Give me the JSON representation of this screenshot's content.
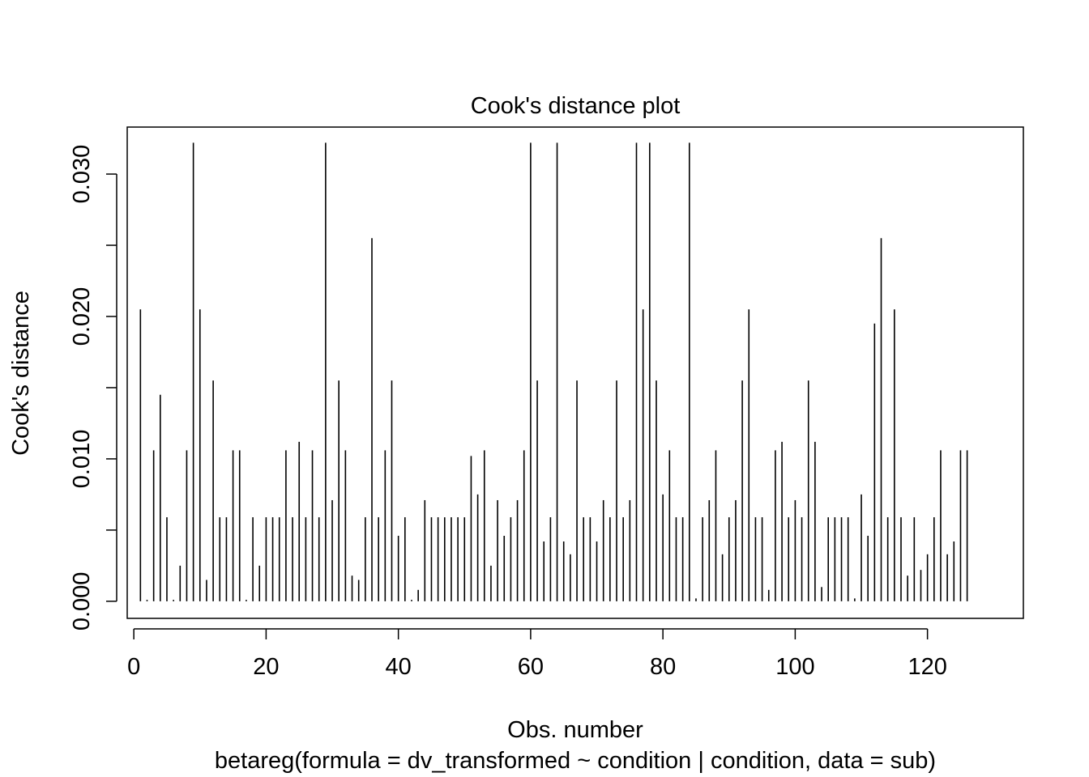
{
  "chart_data": {
    "type": "bar",
    "style": "vertical spikes (type h)",
    "title": "Cook's distance plot",
    "xlabel": "Obs. number",
    "subtitle": "betareg(formula = dv_transformed ~ condition | condition, data = sub)",
    "ylabel": "Cook's distance",
    "xlim": [
      -1,
      134.5
    ],
    "ylim": [
      -0.0012,
      0.0333
    ],
    "x_ticks": [
      0,
      20,
      40,
      60,
      80,
      100,
      120
    ],
    "x_tick_labels": [
      "0",
      "20",
      "40",
      "60",
      "80",
      "100",
      "120"
    ],
    "y_ticks": [
      0.0,
      0.005,
      0.01,
      0.015,
      0.02,
      0.025,
      0.03
    ],
    "y_tick_labels": [
      "0.000",
      "",
      "0.010",
      "",
      "0.020",
      "",
      "0.030"
    ],
    "grid": false,
    "legend": "none",
    "x": [
      1,
      2,
      3,
      4,
      5,
      6,
      7,
      8,
      9,
      10,
      11,
      12,
      13,
      14,
      15,
      16,
      17,
      18,
      19,
      20,
      21,
      22,
      23,
      24,
      25,
      26,
      27,
      28,
      29,
      30,
      31,
      32,
      33,
      34,
      35,
      36,
      37,
      38,
      39,
      40,
      41,
      42,
      43,
      44,
      45,
      46,
      47,
      48,
      49,
      50,
      51,
      52,
      53,
      54,
      55,
      56,
      57,
      58,
      59,
      60,
      61,
      62,
      63,
      64,
      65,
      66,
      67,
      68,
      69,
      70,
      71,
      72,
      73,
      74,
      75,
      76,
      77,
      78,
      79,
      80,
      81,
      82,
      83,
      84,
      85,
      86,
      87,
      88,
      89,
      90,
      91,
      92,
      93,
      94,
      95,
      96,
      97,
      98,
      99,
      100,
      101,
      102,
      103,
      104,
      105,
      106,
      107,
      108,
      109,
      110,
      111,
      112,
      113,
      114,
      115,
      116,
      117,
      118,
      119,
      120,
      121,
      122,
      123,
      124,
      125,
      126
    ],
    "values": [
      0.0205,
      0.0001,
      0.0106,
      0.0145,
      0.0059,
      0.0001,
      0.0025,
      0.0106,
      0.0322,
      0.0205,
      0.0015,
      0.0155,
      0.0059,
      0.0059,
      0.0106,
      0.0106,
      0.0001,
      0.0059,
      0.0025,
      0.0059,
      0.0059,
      0.0059,
      0.0106,
      0.0059,
      0.0112,
      0.0059,
      0.0106,
      0.0059,
      0.0322,
      0.0071,
      0.0155,
      0.0106,
      0.0018,
      0.0015,
      0.0059,
      0.0255,
      0.0059,
      0.0106,
      0.0155,
      0.0046,
      0.0059,
      0.0001,
      0.0008,
      0.0071,
      0.0059,
      0.0059,
      0.0059,
      0.0059,
      0.0059,
      0.0059,
      0.0102,
      0.0075,
      0.0106,
      0.0025,
      0.0071,
      0.0046,
      0.0059,
      0.0071,
      0.0106,
      0.0322,
      0.0155,
      0.0042,
      0.0059,
      0.0322,
      0.0042,
      0.0033,
      0.0155,
      0.0059,
      0.0059,
      0.0042,
      0.0071,
      0.0059,
      0.0155,
      0.0059,
      0.0071,
      0.0322,
      0.0205,
      0.0322,
      0.0155,
      0.0075,
      0.0106,
      0.0059,
      0.0059,
      0.0322,
      0.0002,
      0.0059,
      0.0071,
      0.0106,
      0.0033,
      0.0059,
      0.0071,
      0.0155,
      0.0205,
      0.0059,
      0.0059,
      0.0008,
      0.0106,
      0.0112,
      0.0059,
      0.0071,
      0.0059,
      0.0155,
      0.0112,
      0.001,
      0.0059,
      0.0059,
      0.0059,
      0.0059,
      0.0002,
      0.0075,
      0.0046,
      0.0195,
      0.0255,
      0.0059,
      0.0205,
      0.0059,
      0.0018,
      0.0059,
      0.0022,
      0.0033,
      0.0059,
      0.0106,
      0.0033,
      0.0042,
      0.0106,
      0.0106
    ]
  }
}
